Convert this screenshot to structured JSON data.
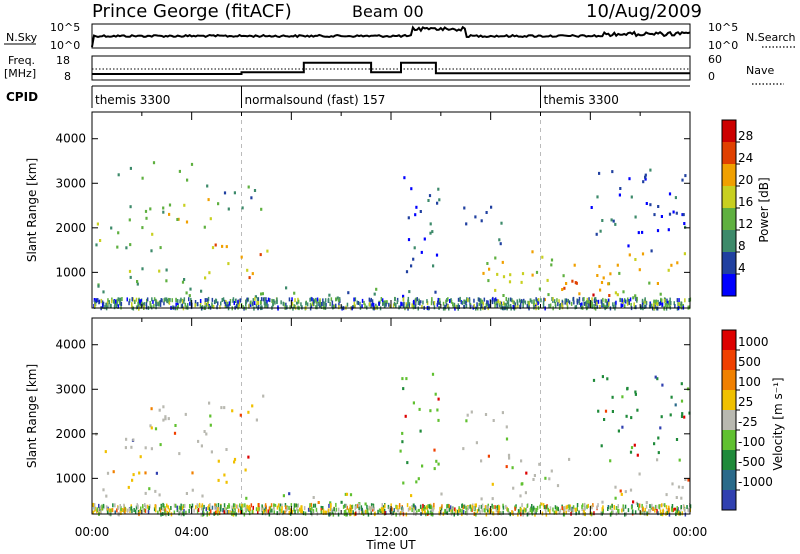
{
  "header": {
    "station": "Prince George (fitACF)",
    "beam": "Beam 00",
    "date": "10/Aug/2009"
  },
  "top_panels": {
    "nsky_label": "N.Sky",
    "nsearch_label": "N.Search",
    "nsky_ticks": [
      "10^5",
      "10^0"
    ],
    "nsearch_ticks": [
      "10^5",
      "10^0"
    ],
    "freq_label": "Freq.",
    "freq_unit": "[MHz]",
    "freq_ticks": [
      "18",
      "8"
    ],
    "nave_label": "Nave",
    "nave_ticks": [
      "60",
      "0"
    ],
    "cpid_label": "CPID",
    "cpid_segments": [
      {
        "name": "themis 3300",
        "start_hour": 0.0,
        "end_hour": 6.0
      },
      {
        "name": "normalsound (fast) 157",
        "start_hour": 6.0,
        "end_hour": 18.0
      },
      {
        "name": "themis 3300",
        "start_hour": 18.0,
        "end_hour": 24.0
      }
    ],
    "freq_steps": [
      {
        "from_hour": 0.0,
        "to_hour": 6.0,
        "mhz": 10.5
      },
      {
        "from_hour": 6.0,
        "to_hour": 8.5,
        "mhz": 11.2
      },
      {
        "from_hour": 8.5,
        "to_hour": 11.2,
        "mhz": 15.2
      },
      {
        "from_hour": 11.2,
        "to_hour": 12.4,
        "mhz": 11.2
      },
      {
        "from_hour": 12.4,
        "to_hour": 13.8,
        "mhz": 15.2
      },
      {
        "from_hour": 13.8,
        "to_hour": 24.0,
        "mhz": 10.8
      }
    ]
  },
  "colorbars": {
    "power": {
      "label": "Power [dB]",
      "ticks": [
        "28",
        "24",
        "20",
        "16",
        "12",
        "8",
        "4"
      ],
      "colors": [
        "#0000ff",
        "#2040a0",
        "#3d8a6a",
        "#5fb040",
        "#c8d020",
        "#f0a000",
        "#e04000",
        "#cc0000"
      ]
    },
    "velocity": {
      "label": "Velocity [m s⁻¹]",
      "ticks": [
        "1000",
        "500",
        "100",
        "25",
        "-25",
        "-100",
        "-500",
        "-1000"
      ],
      "colors": [
        "#3040b0",
        "#2a6a8a",
        "#1f8a3a",
        "#60c030",
        "#b8b8b0",
        "#f0c000",
        "#f08000",
        "#f04000",
        "#dd0000"
      ]
    }
  },
  "chart_data": [
    {
      "type": "heatmap",
      "title": "",
      "panel": "power",
      "xlabel": "",
      "ylabel": "Slant Range [km]",
      "xlim": [
        0,
        24
      ],
      "ylim": [
        200,
        4600
      ],
      "x_tick_labels": [
        "00:00",
        "04:00",
        "08:00",
        "12:00",
        "16:00",
        "20:00",
        "00:00"
      ],
      "y_tick_labels": [
        "1000",
        "2000",
        "3000",
        "4000"
      ],
      "colorbar": "Power [dB]",
      "echo_regions": [
        {
          "t0": 0.1,
          "t1": 3.0,
          "r0": 1500,
          "r1": 2600,
          "level": 3
        },
        {
          "t0": 2.8,
          "t1": 4.8,
          "r0": 1800,
          "r1": 2700,
          "level": 4
        },
        {
          "t0": 4.5,
          "t1": 7.0,
          "r0": 2300,
          "r1": 3000,
          "level": 2
        },
        {
          "t0": 0.1,
          "t1": 4.6,
          "r0": 500,
          "r1": 1200,
          "level": 3
        },
        {
          "t0": 4.2,
          "t1": 7.0,
          "r0": 900,
          "r1": 1700,
          "level": 5
        },
        {
          "t0": 1.0,
          "t1": 4.0,
          "r0": 3100,
          "r1": 3500,
          "level": 2
        },
        {
          "t0": 6.0,
          "t1": 12.0,
          "r0": 250,
          "r1": 700,
          "level": 2
        },
        {
          "t0": 12.3,
          "t1": 14.0,
          "r0": 250,
          "r1": 3400,
          "level": 1
        },
        {
          "t0": 14.8,
          "t1": 16.5,
          "r0": 1600,
          "r1": 2600,
          "level": 2
        },
        {
          "t0": 15.5,
          "t1": 24.0,
          "r0": 300,
          "r1": 1500,
          "level": 4
        },
        {
          "t0": 17.8,
          "t1": 20.8,
          "r0": 400,
          "r1": 1000,
          "level": 6
        },
        {
          "t0": 20.0,
          "t1": 24.0,
          "r0": 1500,
          "r1": 3400,
          "level": 1
        }
      ]
    },
    {
      "type": "heatmap",
      "title": "",
      "panel": "velocity",
      "xlabel": "Time UT",
      "ylabel": "Slant Range [km]",
      "xlim": [
        0,
        24
      ],
      "ylim": [
        200,
        4600
      ],
      "x_tick_labels": [
        "00:00",
        "04:00",
        "08:00",
        "12:00",
        "16:00",
        "20:00",
        "00:00"
      ],
      "y_tick_labels": [
        "1000",
        "2000",
        "3000",
        "4000"
      ],
      "colorbar": "Velocity [m s⁻¹]",
      "echo_regions": [
        {
          "t0": 0.1,
          "t1": 4.8,
          "r0": 1500,
          "r1": 2700,
          "bin": 4
        },
        {
          "t0": 4.5,
          "t1": 7.0,
          "r0": 2300,
          "r1": 3000,
          "bin": 4
        },
        {
          "t0": 0.1,
          "t1": 4.6,
          "r0": 500,
          "r1": 1200,
          "bin": 4
        },
        {
          "t0": 4.2,
          "t1": 6.3,
          "r0": 900,
          "r1": 1700,
          "bin": 5
        },
        {
          "t0": 6.0,
          "t1": 12.5,
          "r0": 250,
          "r1": 700,
          "bin": 3
        },
        {
          "t0": 12.3,
          "t1": 14.0,
          "r0": 250,
          "r1": 3400,
          "bin": 3
        },
        {
          "t0": 14.8,
          "t1": 16.8,
          "r0": 1500,
          "r1": 2600,
          "bin": 4
        },
        {
          "t0": 15.5,
          "t1": 24.0,
          "r0": 300,
          "r1": 1500,
          "bin": 4
        },
        {
          "t0": 20.0,
          "t1": 24.0,
          "r0": 1500,
          "r1": 3400,
          "bin": 2
        }
      ]
    }
  ]
}
